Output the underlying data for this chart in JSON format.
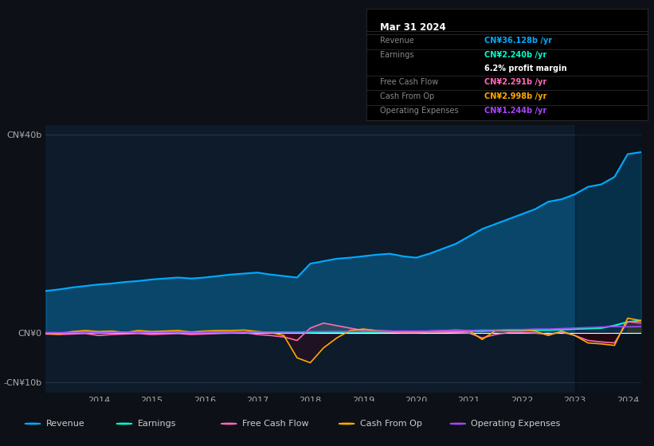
{
  "background_color": "#0d1117",
  "plot_bg_color": "#0d1b2a",
  "title": "Mar 31 2024",
  "tooltip": {
    "date": "Mar 31 2024",
    "revenue": "CN¥36.128b /yr",
    "earnings": "CN¥2.240b /yr",
    "profit_margin": "6.2% profit margin",
    "free_cash_flow": "CN¥2.291b /yr",
    "cash_from_op": "CN¥2.998b /yr",
    "operating_expenses": "CN¥1.244b /yr"
  },
  "revenue_color": "#00aaff",
  "earnings_color": "#00ffcc",
  "free_cash_flow_color": "#ff69b4",
  "cash_from_op_color": "#ffaa00",
  "operating_expenses_color": "#aa44ff",
  "years": [
    2013.0,
    2013.25,
    2013.5,
    2013.75,
    2014.0,
    2014.25,
    2014.5,
    2014.75,
    2015.0,
    2015.25,
    2015.5,
    2015.75,
    2016.0,
    2016.25,
    2016.5,
    2016.75,
    2017.0,
    2017.25,
    2017.5,
    2017.75,
    2018.0,
    2018.25,
    2018.5,
    2018.75,
    2019.0,
    2019.25,
    2019.5,
    2019.75,
    2020.0,
    2020.25,
    2020.5,
    2020.75,
    2021.0,
    2021.25,
    2021.5,
    2021.75,
    2022.0,
    2022.25,
    2022.5,
    2022.75,
    2023.0,
    2023.25,
    2023.5,
    2023.75,
    2024.0,
    2024.25
  ],
  "revenue": [
    8.5,
    8.8,
    9.2,
    9.5,
    9.8,
    10.0,
    10.3,
    10.5,
    10.8,
    11.0,
    11.2,
    11.0,
    11.2,
    11.5,
    11.8,
    12.0,
    12.2,
    11.8,
    11.5,
    11.2,
    14.0,
    14.5,
    15.0,
    15.2,
    15.5,
    15.8,
    16.0,
    15.5,
    15.2,
    16.0,
    17.0,
    18.0,
    19.5,
    21.0,
    22.0,
    23.0,
    24.0,
    25.0,
    26.5,
    27.0,
    28.0,
    29.5,
    30.0,
    31.5,
    36.1,
    36.5
  ],
  "earnings": [
    0.0,
    0.0,
    0.1,
    0.1,
    0.1,
    0.1,
    0.1,
    0.1,
    0.1,
    0.1,
    0.1,
    0.0,
    0.0,
    0.1,
    0.1,
    0.1,
    0.1,
    0.1,
    0.1,
    0.1,
    0.1,
    0.2,
    0.2,
    0.2,
    0.2,
    0.2,
    0.2,
    0.2,
    0.2,
    0.3,
    0.3,
    0.3,
    0.4,
    0.4,
    0.5,
    0.5,
    0.5,
    0.6,
    0.6,
    0.7,
    0.8,
    0.9,
    1.0,
    1.5,
    2.24,
    2.5
  ],
  "free_cash_flow": [
    -0.2,
    -0.3,
    -0.2,
    -0.1,
    -0.5,
    -0.3,
    -0.2,
    -0.1,
    -0.3,
    -0.2,
    -0.1,
    -0.3,
    -0.2,
    -0.1,
    0.0,
    0.1,
    -0.3,
    -0.5,
    -0.8,
    -1.5,
    1.0,
    2.0,
    1.5,
    1.0,
    0.5,
    0.3,
    0.2,
    0.1,
    0.1,
    0.2,
    0.2,
    0.1,
    0.0,
    -1.0,
    -0.3,
    0.1,
    0.1,
    0.0,
    -0.3,
    0.2,
    -0.5,
    -1.5,
    -1.8,
    -2.0,
    2.291,
    2.0
  ],
  "cash_from_op": [
    -0.1,
    -0.2,
    0.3,
    0.5,
    0.3,
    0.4,
    0.1,
    0.5,
    0.3,
    0.4,
    0.5,
    0.2,
    0.4,
    0.5,
    0.5,
    0.6,
    0.3,
    0.1,
    -0.5,
    -5.0,
    -6.0,
    -3.0,
    -1.0,
    0.5,
    0.8,
    0.5,
    0.4,
    0.3,
    0.3,
    0.4,
    0.5,
    0.6,
    0.5,
    -1.3,
    0.5,
    0.6,
    0.6,
    0.4,
    -0.5,
    0.4,
    -0.5,
    -2.0,
    -2.2,
    -2.5,
    2.998,
    2.5
  ],
  "operating_expenses": [
    0.1,
    0.1,
    0.1,
    0.1,
    0.1,
    0.1,
    0.2,
    0.1,
    0.1,
    0.1,
    0.2,
    0.1,
    0.1,
    0.2,
    0.2,
    0.2,
    0.2,
    0.2,
    0.2,
    0.2,
    0.3,
    0.3,
    0.3,
    0.3,
    0.3,
    0.4,
    0.4,
    0.4,
    0.4,
    0.4,
    0.5,
    0.5,
    0.5,
    0.6,
    0.6,
    0.7,
    0.7,
    0.8,
    0.8,
    0.9,
    1.0,
    1.1,
    1.2,
    1.3,
    1.244,
    1.3
  ],
  "ylim_top": 42,
  "ylim_bottom": -12,
  "zero_line": 0,
  "y_ticks": [
    40,
    0,
    -10
  ],
  "y_labels": [
    "CN¥40b",
    "CN¥0",
    "-CN¥10b"
  ],
  "x_ticks": [
    2014,
    2015,
    2016,
    2017,
    2018,
    2019,
    2020,
    2021,
    2022,
    2023,
    2024
  ],
  "legend_items": [
    "Revenue",
    "Earnings",
    "Free Cash Flow",
    "Cash From Op",
    "Operating Expenses"
  ],
  "legend_colors": [
    "#00aaff",
    "#00ffcc",
    "#ff69b4",
    "#ffaa00",
    "#aa44ff"
  ]
}
